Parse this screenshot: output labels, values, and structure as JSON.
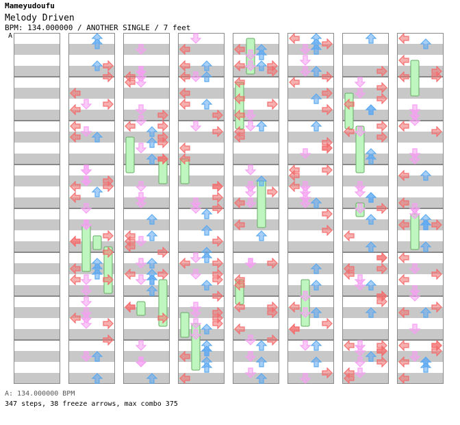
{
  "header": {
    "artist": "Mameyudoufu",
    "title": "Melody Driven",
    "info": "BPM: 134.000000 / ANOTHER SINGLE / 7 feet"
  },
  "section_marker": "A",
  "footer": {
    "bpm_line": "A: 134.000000 BPM",
    "stats_line": "347 steps, 38 freeze arrows, max combo 375"
  },
  "colors": {
    "stripe_gray": "#c8c8c8",
    "left": "#f26d6d",
    "down": "#f59ff2",
    "up": "#5ca9f2",
    "right": "#f26d6d",
    "freeze": "#bff5bf"
  },
  "chart_data": {
    "type": "dance-step-chart",
    "columns": 8,
    "measures_per_column": 8,
    "bpm": 134,
    "steps": 347,
    "freeze_arrows": 38,
    "max_combo": 375
  }
}
